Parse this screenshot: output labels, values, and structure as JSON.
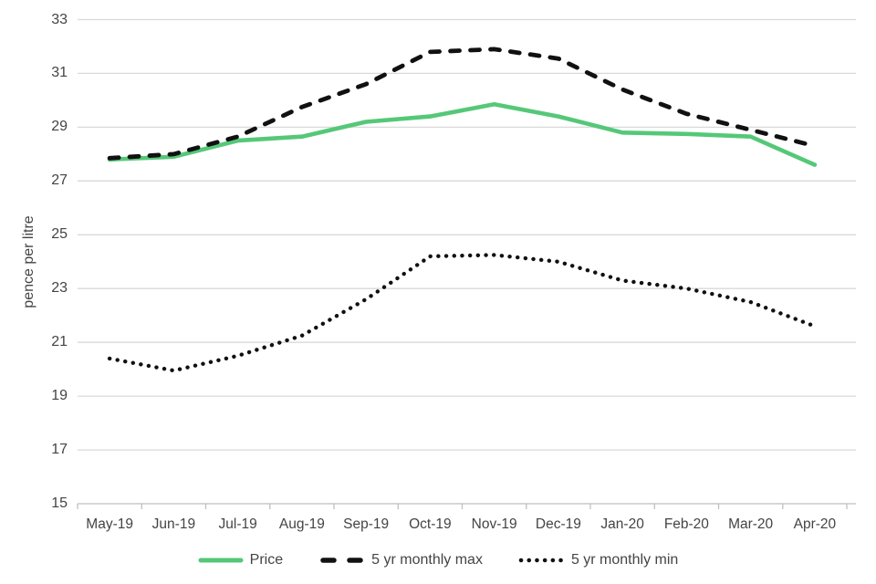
{
  "chart_data": {
    "type": "line",
    "title": "",
    "xlabel": "",
    "ylabel": "pence per litre",
    "ylim": [
      15,
      33
    ],
    "yticks": [
      33,
      31,
      29,
      27,
      25,
      23,
      21,
      19,
      17,
      15
    ],
    "grid": true,
    "legend_position": "bottom",
    "categories": [
      "May-19",
      "Jun-19",
      "Jul-19",
      "Aug-19",
      "Sep-19",
      "Oct-19",
      "Nov-19",
      "Dec-19",
      "Jan-20",
      "Feb-20",
      "Mar-20",
      "Apr-20"
    ],
    "series": [
      {
        "name": "Price",
        "style": "solid",
        "color": "#55c878",
        "values": [
          27.8,
          27.9,
          28.5,
          28.65,
          29.2,
          29.4,
          29.85,
          29.4,
          28.8,
          28.75,
          28.65,
          27.6
        ]
      },
      {
        "name": "5 yr monthly max",
        "style": "dashed",
        "color": "#111111",
        "values": [
          27.85,
          28.0,
          28.65,
          29.75,
          30.6,
          31.8,
          31.9,
          31.55,
          30.4,
          29.5,
          28.9,
          28.3
        ]
      },
      {
        "name": "5 yr monthly min",
        "style": "dotted",
        "color": "#111111",
        "values": [
          20.4,
          19.95,
          20.5,
          21.25,
          22.6,
          24.2,
          24.25,
          24.0,
          23.3,
          23.0,
          22.5,
          21.6
        ]
      }
    ]
  },
  "colors": {
    "background": "#ffffff",
    "gridline": "#d9d9d9",
    "axis": "#bfbfbf",
    "text": "#444444",
    "price_green": "#55c878",
    "line_black": "#111111"
  }
}
